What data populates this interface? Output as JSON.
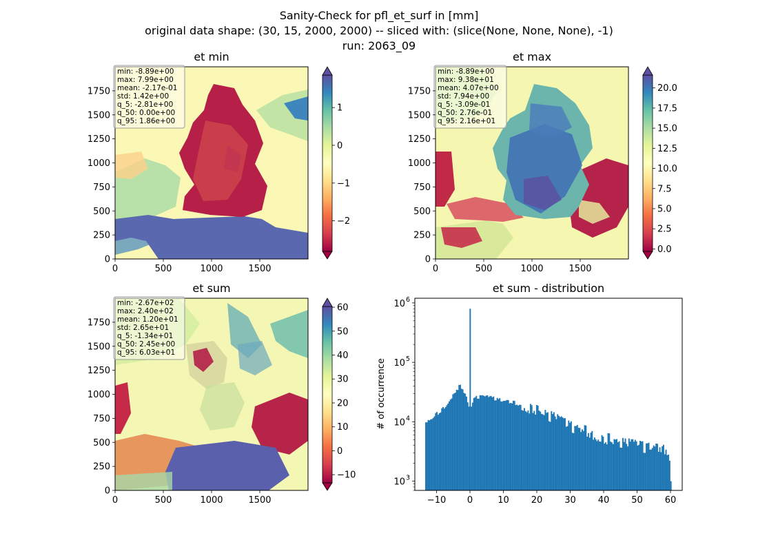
{
  "suptitle": {
    "line1": "Sanity-Check for pfl_et_surf in [mm]",
    "line2": "original data shape: (30, 15, 2000, 2000) -- sliced with: (slice(None, None, None), -1)",
    "line3": "run: 2063_09"
  },
  "panels": [
    {
      "title": "et min",
      "stats": [
        "min: -8.89e+00",
        "max: 7.99e+00",
        "mean: -2.17e-01",
        "std: 1.42e+00",
        "q_5: -2.81e+00",
        "q_50: 0.00e+00",
        "q_95: 1.86e+00"
      ],
      "cbar_ticks": [
        "1",
        "0",
        "−1",
        "−2"
      ],
      "cbar_range": [
        -2.81,
        1.86
      ],
      "cbar_tick_values": [
        1,
        0,
        -1,
        -2
      ]
    },
    {
      "title": "et max",
      "stats": [
        "min: -8.89e+00",
        "max: 9.38e+01",
        "mean: 4.07e+00",
        "std: 7.94e+00",
        "q_5: -3.09e-01",
        "q_50: 2.76e-01",
        "q_95: 2.16e+01"
      ],
      "cbar_ticks": [
        "20.0",
        "17.5",
        "15.0",
        "12.5",
        "10.0",
        "7.5",
        "5.0",
        "2.5",
        "0.0"
      ],
      "cbar_range": [
        -0.309,
        21.6
      ],
      "cbar_tick_values": [
        20,
        17.5,
        15,
        12.5,
        10,
        7.5,
        5,
        2.5,
        0
      ]
    },
    {
      "title": "et sum",
      "stats": [
        "min: -2.67e+02",
        "max: 2.40e+02",
        "mean: 1.20e+01",
        "std: 2.65e+01",
        "q_5: -1.34e+01",
        "q_50: 2.45e+00",
        "q_95: 6.03e+01"
      ],
      "cbar_ticks": [
        "60",
        "50",
        "40",
        "30",
        "20",
        "10",
        "0",
        "−10"
      ],
      "cbar_range": [
        -13.4,
        60.3
      ],
      "cbar_tick_values": [
        60,
        50,
        40,
        30,
        20,
        10,
        0,
        -10
      ]
    }
  ],
  "map_axes": {
    "x_ticks": [
      "0",
      "500",
      "1000",
      "1500"
    ],
    "y_ticks": [
      "0",
      "250",
      "500",
      "750",
      "1000",
      "1250",
      "1500",
      "1750"
    ]
  },
  "colormap": "Spectral",
  "chart_data": {
    "type": "bar",
    "title": "et sum - distribution",
    "xlabel": "",
    "ylabel": "# of occurrence",
    "y_scale": "log",
    "xlim": [
      -16.5,
      63.5
    ],
    "ylim": [
      700,
      1200000
    ],
    "x_ticks": [
      "−10",
      "0",
      "10",
      "20",
      "30",
      "40",
      "50",
      "60"
    ],
    "y_ticks": [
      "10",
      "10",
      "10",
      "10"
    ],
    "y_tick_exponents": [
      "3",
      "4",
      "5",
      "6"
    ],
    "color": "#1f77b4",
    "bins": [
      -13.4,
      60.3
    ],
    "bin_count": 200,
    "profile": [
      [
        -13.4,
        9500
      ],
      [
        -12.0,
        11000
      ],
      [
        -10.0,
        13500
      ],
      [
        -8.0,
        17000
      ],
      [
        -6.0,
        24000
      ],
      [
        -4.5,
        33000
      ],
      [
        -3.0,
        40000
      ],
      [
        -2.0,
        34000
      ],
      [
        -1.0,
        25000
      ],
      [
        -0.2,
        15000
      ],
      [
        0.0,
        800000
      ],
      [
        0.3,
        21000
      ],
      [
        2.0,
        26000
      ],
      [
        5.0,
        26000
      ],
      [
        10.0,
        23000
      ],
      [
        15.0,
        20000
      ],
      [
        20.0,
        16000
      ],
      [
        25.0,
        12000
      ],
      [
        30.0,
        8500
      ],
      [
        35.0,
        7000
      ],
      [
        40.0,
        5500
      ],
      [
        45.0,
        4700
      ],
      [
        50.0,
        4000
      ],
      [
        55.0,
        3600
      ],
      [
        59.5,
        3500
      ],
      [
        60.3,
        1000
      ]
    ]
  }
}
